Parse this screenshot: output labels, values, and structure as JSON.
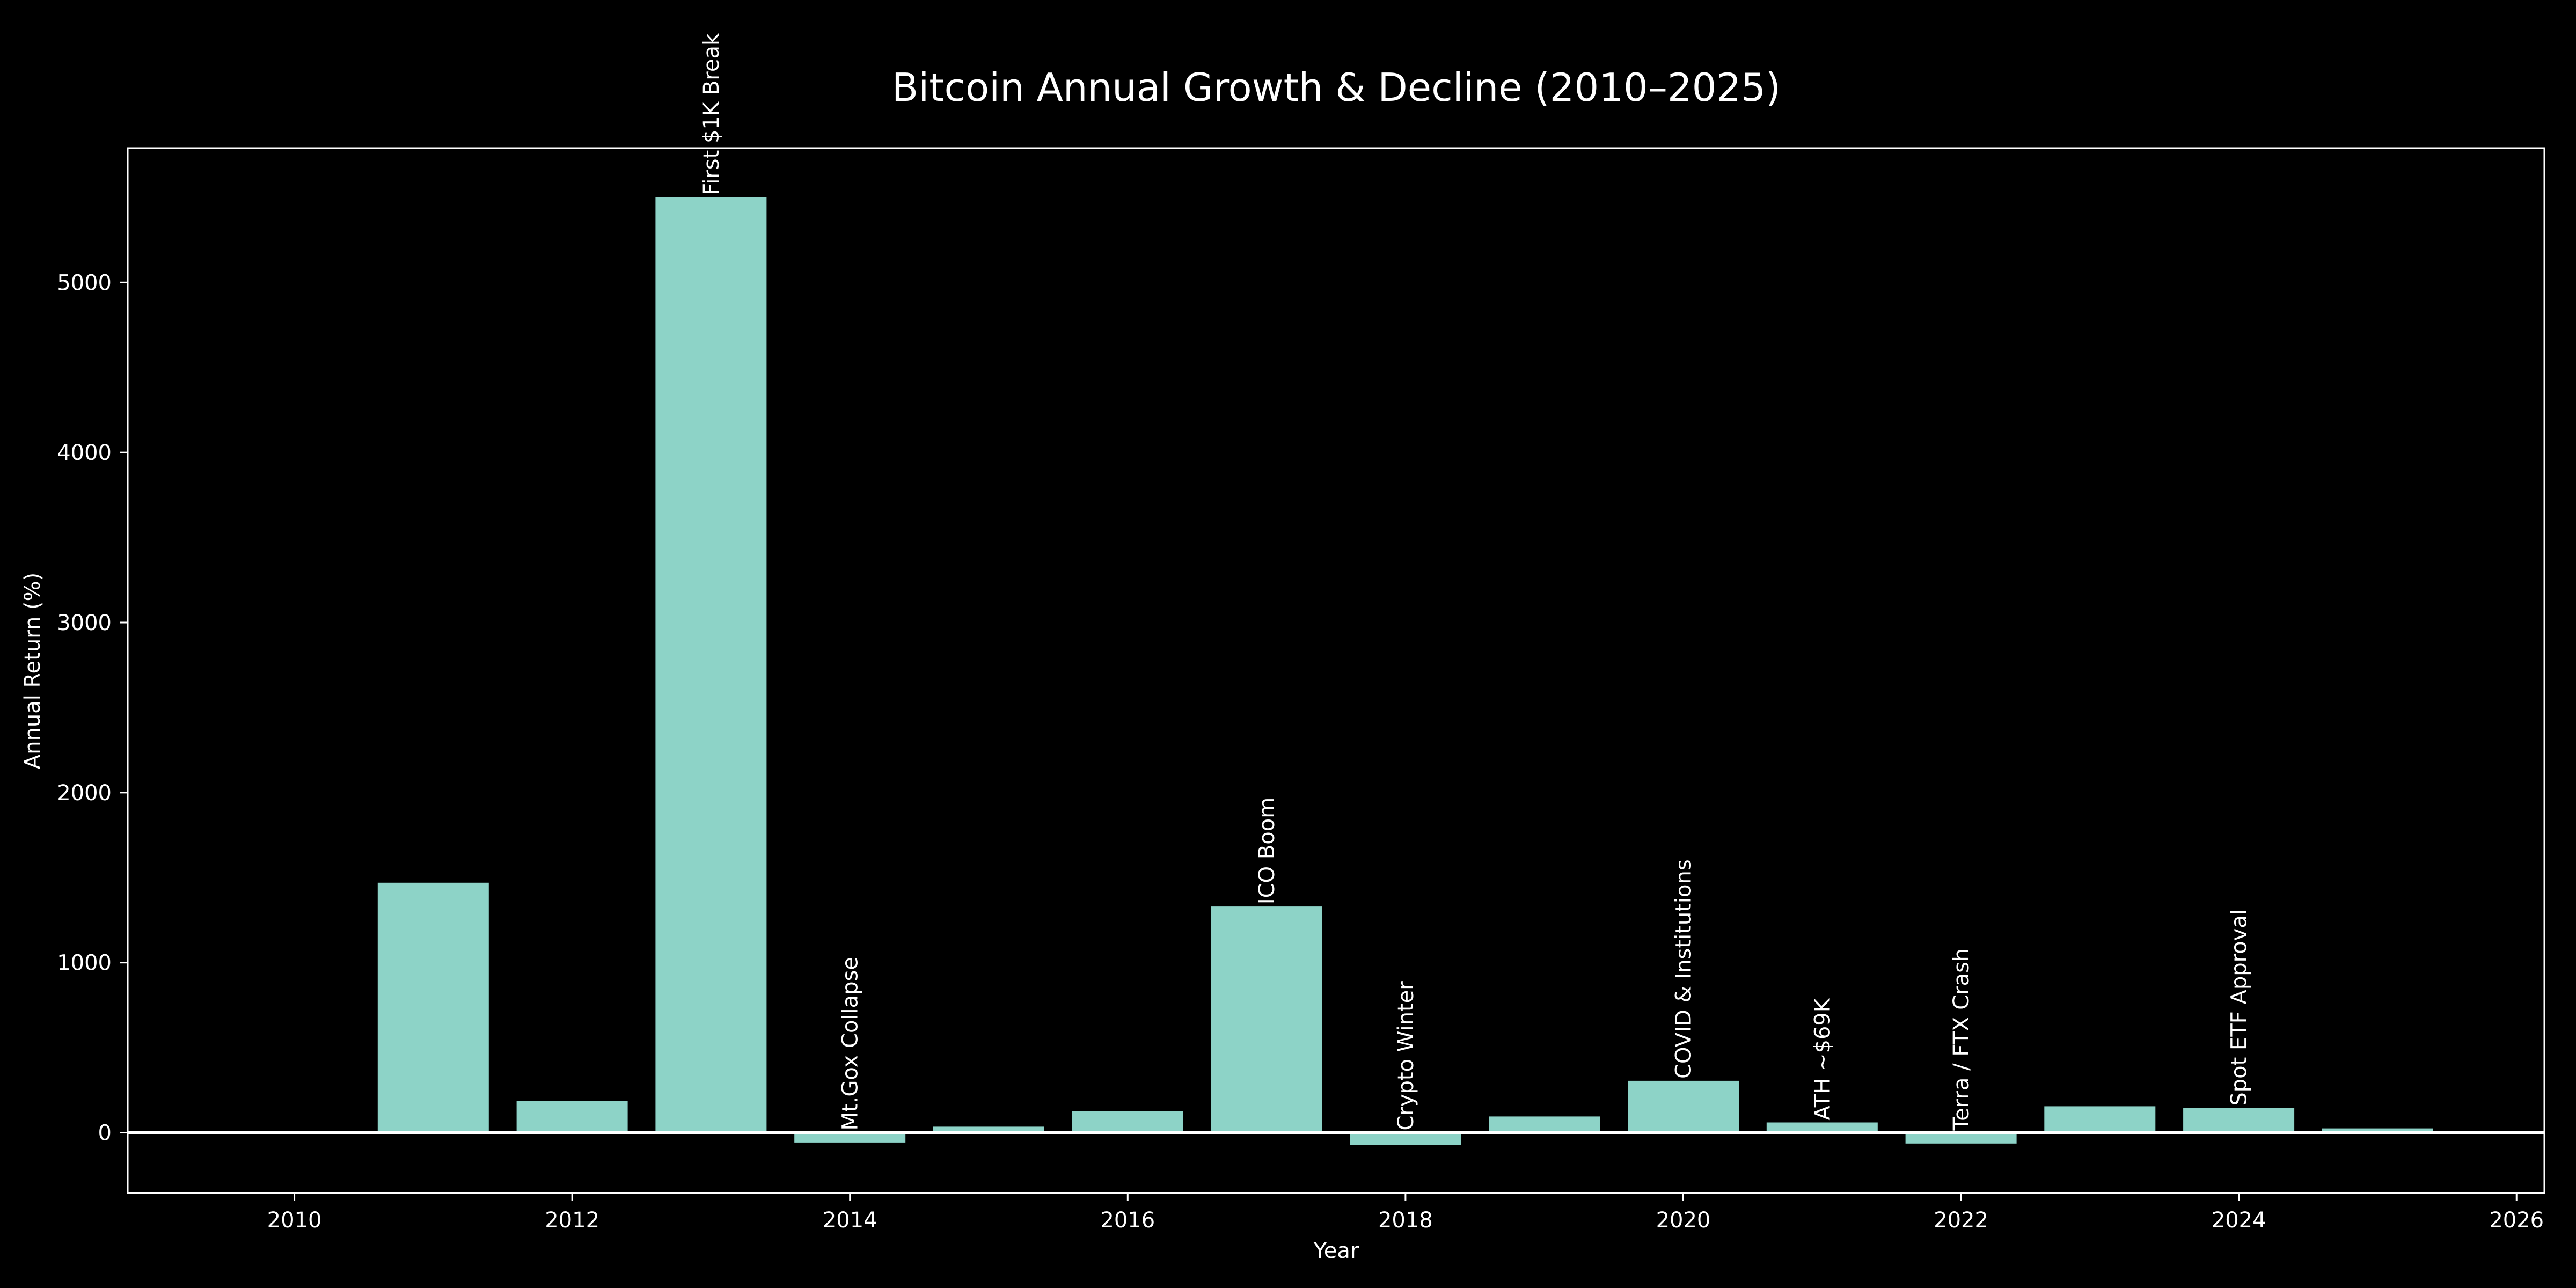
{
  "chart_data": {
    "type": "bar",
    "title": "Bitcoin Annual Growth & Decline (2010–2025)",
    "xlabel": "Year",
    "ylabel": "Annual Return (%)",
    "x": [
      2010,
      2011,
      2012,
      2013,
      2014,
      2015,
      2016,
      2017,
      2018,
      2019,
      2020,
      2021,
      2022,
      2023,
      2024,
      2025
    ],
    "values": [
      0,
      1470,
      185,
      5500,
      -58,
      35,
      125,
      1330,
      -73,
      95,
      305,
      60,
      -64,
      155,
      145,
      25
    ],
    "annotations": [
      {
        "x": 2013,
        "label": "First $1K Break"
      },
      {
        "x": 2014,
        "label": "Mt.Gox Collapse"
      },
      {
        "x": 2017,
        "label": "ICO Boom"
      },
      {
        "x": 2018,
        "label": "Crypto Winter"
      },
      {
        "x": 2020,
        "label": "COVID & Institutions"
      },
      {
        "x": 2021,
        "label": "ATH ~$69K"
      },
      {
        "x": 2022,
        "label": "Terra / FTX Crash"
      },
      {
        "x": 2024,
        "label": "Spot ETF Approval"
      }
    ],
    "xticks": [
      2010,
      2012,
      2014,
      2016,
      2018,
      2020,
      2022,
      2024,
      2026
    ],
    "yticks": [
      0,
      1000,
      2000,
      3000,
      4000,
      5000
    ],
    "xlim": [
      2008.8,
      2026.2
    ],
    "ylim": [
      -355,
      5790
    ],
    "bar_color": "#8dd3c7",
    "background": "#000000",
    "foreground": "#ffffff",
    "zero_line": true,
    "grid": false
  }
}
